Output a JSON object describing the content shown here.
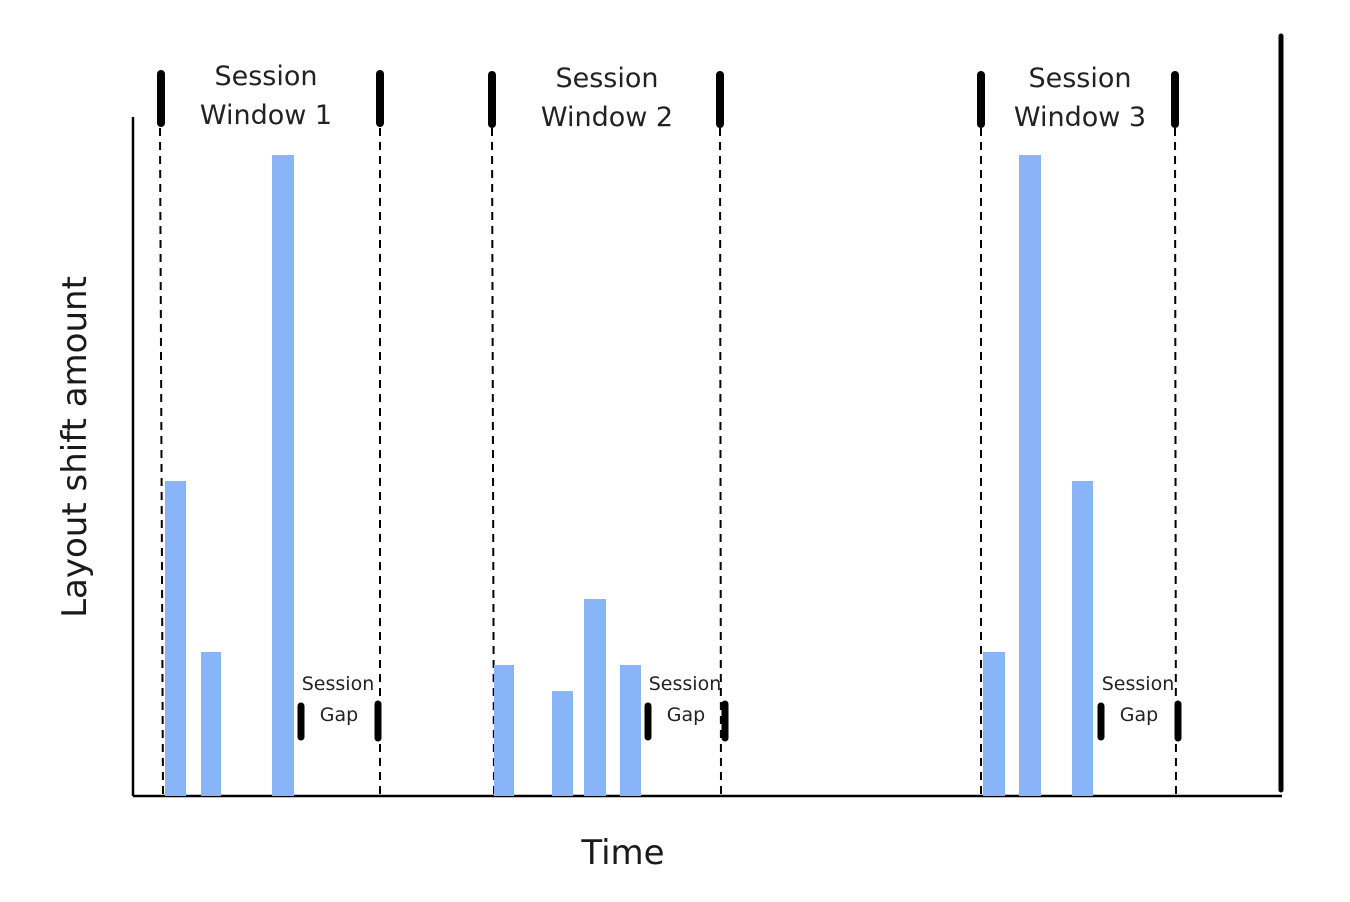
{
  "axes": {
    "xlabel": "Time",
    "ylabel": "Layout shift amount"
  },
  "colors": {
    "bar": "#8ab4f8",
    "line": "#000000",
    "text": "#222222"
  },
  "windows": [
    {
      "line1": "Session",
      "line2": "Window 1",
      "gap_line1": "Session",
      "gap_line2": "Gap"
    },
    {
      "line1": "Session",
      "line2": "Window 2",
      "gap_line1": "Session",
      "gap_line2": "Gap"
    },
    {
      "line1": "Session",
      "line2": "Window 3",
      "gap_line1": "Session",
      "gap_line2": "Gap"
    }
  ]
}
